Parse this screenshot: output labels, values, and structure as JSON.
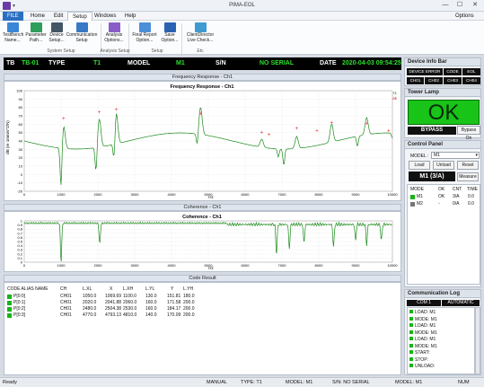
{
  "window": {
    "title": "PIMA-EOL",
    "minimize": "—",
    "maximize": "☐",
    "close": "✕"
  },
  "menu": {
    "file": "FILE",
    "items": [
      "Home",
      "Edit",
      "Setup",
      "Windows",
      "Help"
    ],
    "options": "Options"
  },
  "ribbon": {
    "buttons": [
      {
        "label": "TestBench Name...",
        "icon": "testbench-icon"
      },
      {
        "label": "Parameter Path...",
        "icon": "parameter-icon"
      },
      {
        "label": "Device Setup...",
        "icon": "device-icon"
      },
      {
        "label": "Communication Setup",
        "icon": "communication-icon"
      },
      {
        "label": "Analysis Options...",
        "icon": "analysis-icon"
      },
      {
        "label": "Final Report Option...",
        "icon": "report-icon"
      },
      {
        "label": "Save Option...",
        "icon": "save-icon"
      },
      {
        "label": "ClientDirector Live Check...",
        "icon": "client-icon"
      }
    ],
    "groups": [
      "System Setup",
      "Analysis Setup",
      "Setup",
      "Etc"
    ]
  },
  "infobar": {
    "tb_label": "TB",
    "tb_value": "TB-01",
    "type_label": "TYPE",
    "type_value": "T1",
    "model_label": "MODEL",
    "model_value": "M1",
    "sn_label": "S/N",
    "sn_value": "NO SERIAL",
    "date_label": "DATE",
    "date_value": "2020-04-03 09:54:25"
  },
  "freq_panel": {
    "header": "Frequency Response - Ch1",
    "title": "Frequency Response - Ch1",
    "ylabel": "dB (re 1mm/s^2/N)",
    "xlabel": "Hz",
    "legend": [
      "CH1",
      "Peak"
    ],
    "x_ticks": [
      "0",
      "1000",
      "2000",
      "3000",
      "4000",
      "5000",
      "6000",
      "7000",
      "8000",
      "9000",
      "10000"
    ],
    "y_ticks": [
      "100",
      "90",
      "80",
      "70",
      "60",
      "50",
      "40",
      "30",
      "20",
      "10",
      "0",
      "-10",
      "-20"
    ]
  },
  "coh_panel": {
    "header": "Coherence - Ch1",
    "title": "Coherence - Ch1",
    "xlabel": "Hz",
    "y_ticks": [
      "1",
      "0.9",
      "0.8",
      "0.7",
      "0.6",
      "0.5",
      "0.4",
      "0.3",
      "0.2",
      "0.1",
      "0"
    ],
    "x_ticks": [
      "0",
      "1000",
      "2000",
      "3000",
      "4000",
      "5000",
      "6000",
      "7000",
      "8000",
      "9000",
      "10000"
    ]
  },
  "code_result": {
    "header": "Code Result",
    "columns": [
      "CODE ALIAS NAME",
      "CH",
      "L.XL",
      "X",
      "L.XH",
      "L.YL",
      "Y",
      "L.YH"
    ],
    "rows": [
      {
        "name": "P[0:0]",
        "ch": "CH01",
        "lxl": "1050.0",
        "x": "1069.69",
        "lxh": "1100.0",
        "lyl": "130.0",
        "y": "151.81",
        "lyh": "180.0"
      },
      {
        "name": "P[0:1]",
        "ch": "CH01",
        "lxl": "2020.0",
        "x": "2041.88",
        "lxh": "2060.0",
        "lyl": "160.0",
        "y": "171.58",
        "lyh": "200.0"
      },
      {
        "name": "P[0:2]",
        "ch": "CH01",
        "lxl": "2480.0",
        "x": "2504.38",
        "lxh": "2530.0",
        "lyl": "160.0",
        "y": "184.17",
        "lyh": "200.0"
      },
      {
        "name": "P[0:3]",
        "ch": "CH01",
        "lxl": "4770.0",
        "x": "4793.13",
        "lxh": "4810.0",
        "lyl": "140.0",
        "y": "170.09",
        "lyh": "200.0"
      }
    ]
  },
  "device_info": {
    "header": "Device Info Bar",
    "cells": [
      "DEVICE ERROR",
      "CODE",
      "EOL",
      "CH01",
      "CH02",
      "CH03",
      "CH04"
    ]
  },
  "tower_lamp": {
    "header": "Tower Lamp",
    "status": "OK",
    "mode": "BYPASS",
    "bypass_button": "Bypass On",
    "color": "#18c418"
  },
  "control_panel": {
    "header": "Control Panel",
    "model_label": "MODEL :",
    "model_value": "M1",
    "load": "Load",
    "unload": "Unload",
    "reset": "Reset",
    "display": "M1 (3/A)",
    "measure": "Measure",
    "columns": [
      "MODE",
      "OK",
      "CNT",
      "TIME"
    ],
    "rows": [
      {
        "mode": "M1",
        "ok": "OK",
        "cnt": "3/A",
        "time": "0.0"
      },
      {
        "mode": "M2",
        "ok": "-",
        "cnt": "0/A",
        "time": "0.0"
      }
    ]
  },
  "comm_log": {
    "header": "Communication Log",
    "port": "COM 1",
    "mode": "AUTOMATIC",
    "lines": [
      "LOAD: M1",
      "MODE: M1",
      "LOAD: M1",
      "MODE: M1",
      "LOAD: M1",
      "MODE: M1",
      "START:",
      "STOP:",
      "UNLOAD:"
    ]
  },
  "statusbar": {
    "ready": "Ready",
    "mode": "MANUAL",
    "type": "TYPE: T1",
    "model": "MODEL: M1",
    "sn": "S/N: NO SERIAL",
    "model2": "MODEL: M1",
    "num": "NUM"
  }
}
